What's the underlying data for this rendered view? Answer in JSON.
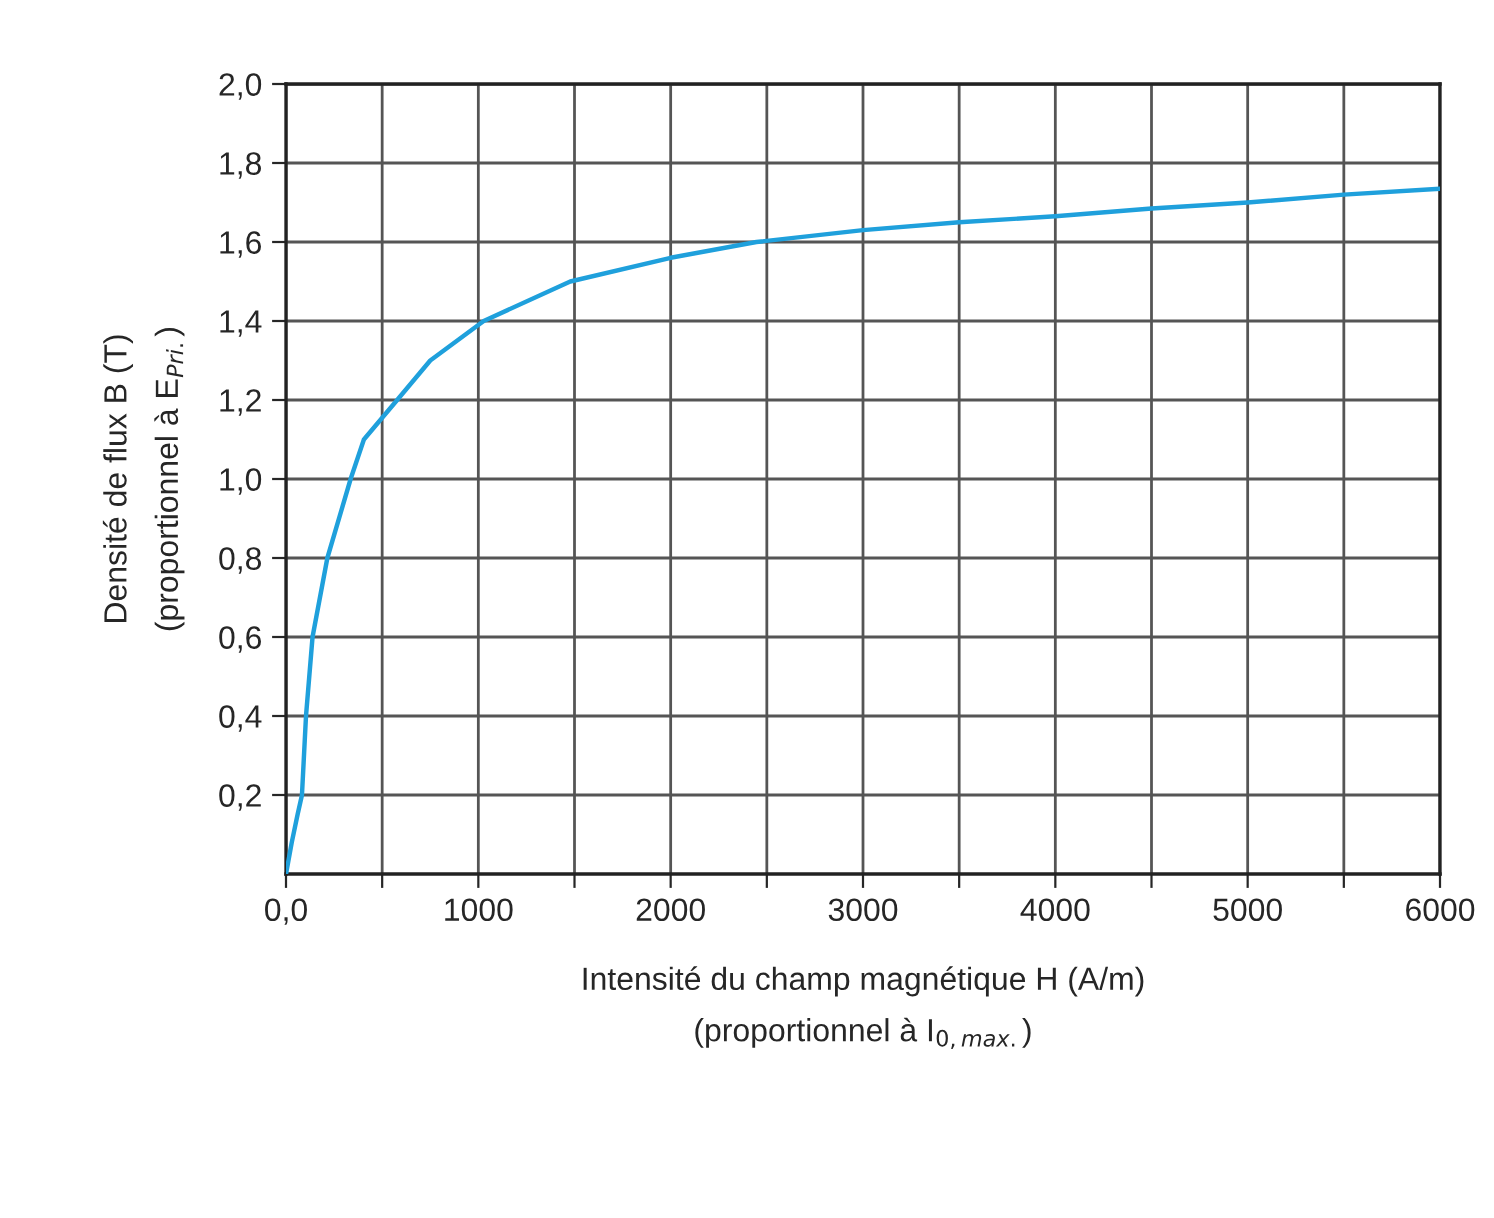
{
  "chart_data": {
    "type": "line",
    "xlabel": "Intensité du champ magnétique H (A/m)\n(proportionnel à I$_{0,max.}$)",
    "ylabel": "Densité de flux B (T)\n(proportionnel à E$_{Pri.}$)",
    "x": [
      0,
      30,
      60,
      83,
      104,
      138,
      215,
      336,
      405,
      578,
      750,
      1028,
      1478,
      2000,
      2446,
      3000,
      3500,
      4000,
      4500,
      5000,
      5500,
      6000
    ],
    "series": [
      {
        "color": "#1fa0dc",
        "values": [
          0,
          0.08,
          0.15,
          0.2,
          0.4,
          0.6,
          0.8,
          1.0,
          1.1,
          1.2,
          1.3,
          1.4,
          1.5,
          1.56,
          1.6,
          1.63,
          1.65,
          1.665,
          1.685,
          1.7,
          1.72,
          1.735
        ]
      }
    ],
    "xlim": [
      0,
      6000
    ],
    "ylim": [
      0,
      2
    ],
    "xticks": [
      {
        "value": 0,
        "label": "0,0"
      },
      {
        "value": 500,
        "label": null
      },
      1000,
      {
        "value": 1500,
        "label": null
      },
      2000,
      {
        "value": 2500,
        "label": null
      },
      3000,
      {
        "value": 3500,
        "label": null
      },
      4000,
      {
        "value": 4500,
        "label": null
      },
      5000,
      {
        "value": 5500,
        "label": null
      },
      6000
    ],
    "yticks": [
      {
        "value": 0.2,
        "label": "0,2"
      },
      {
        "value": 0.4,
        "label": "0,4"
      },
      {
        "value": 0.6,
        "label": "0,6"
      },
      {
        "value": 0.8,
        "label": "0,8"
      },
      {
        "value": 1.0,
        "label": "1,0"
      },
      {
        "value": 1.2,
        "label": "1,2"
      },
      {
        "value": 1.4,
        "label": "1,4"
      },
      {
        "value": 1.6,
        "label": "1,6"
      },
      {
        "value": 1.8,
        "label": "1,8"
      },
      {
        "value": 2.0,
        "label": "2,0"
      }
    ],
    "grid": true,
    "legend": false,
    "marker": "none",
    "line_style": "solid"
  }
}
